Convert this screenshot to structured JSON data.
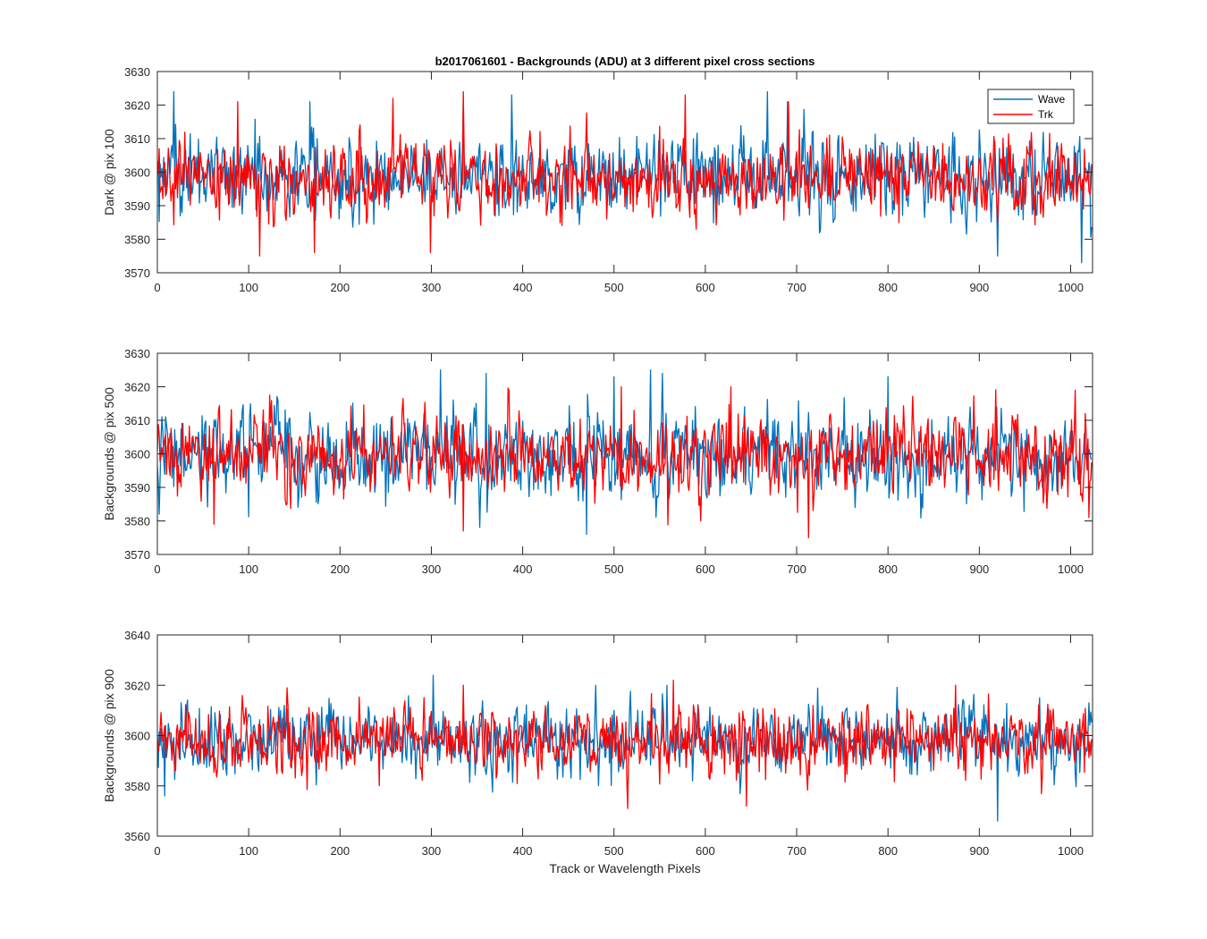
{
  "figure": {
    "title": "b2017061601 - Backgrounds (ADU) at 3 different pixel cross sections",
    "xlabel": "Track or Wavelength Pixels"
  },
  "legend": {
    "placement": "top-right of first panel",
    "entries": [
      {
        "label": "Wave",
        "color": "#0072BD"
      },
      {
        "label": "Trk",
        "color": "#FF0000"
      }
    ]
  },
  "chart_data": [
    {
      "type": "line",
      "ylabel": "Dark @ pix 100",
      "xlim": [
        0,
        1024
      ],
      "ylim": [
        3570,
        3630
      ],
      "xticks": [
        0,
        100,
        200,
        300,
        400,
        500,
        600,
        700,
        800,
        900,
        1000
      ],
      "yticks": [
        3570,
        3580,
        3590,
        3600,
        3610,
        3620,
        3630
      ],
      "grid": false,
      "n_points": 1024,
      "series": [
        {
          "name": "Wave",
          "color": "#0072BD",
          "mean": 3599,
          "std": 6.0,
          "spikes": [
            [
              18,
              3624
            ],
            [
              167,
              3621
            ],
            [
              335,
              3621
            ],
            [
              388,
              3623
            ],
            [
              668,
              3624
            ],
            [
              690,
              3621
            ],
            [
              1012,
              3573
            ],
            [
              920,
              3575
            ]
          ]
        },
        {
          "name": "Trk",
          "color": "#FF0000",
          "mean": 3598,
          "std": 5.5,
          "spikes": [
            [
              88,
              3621
            ],
            [
              112,
              3575
            ],
            [
              172,
              3576
            ],
            [
              258,
              3622
            ],
            [
              335,
              3624
            ],
            [
              578,
              3623
            ],
            [
              691,
              3621
            ],
            [
              299,
              3576
            ]
          ]
        }
      ]
    },
    {
      "type": "line",
      "ylabel": "Backgrounds @ pix 500",
      "xlim": [
        0,
        1024
      ],
      "ylim": [
        3570,
        3630
      ],
      "xticks": [
        0,
        100,
        200,
        300,
        400,
        500,
        600,
        700,
        800,
        900,
        1000
      ],
      "yticks": [
        3570,
        3580,
        3590,
        3600,
        3610,
        3620,
        3630
      ],
      "grid": false,
      "n_points": 1024,
      "series": [
        {
          "name": "Wave",
          "color": "#0072BD",
          "mean": 3599,
          "std": 6.5,
          "spikes": [
            [
              310,
              3625
            ],
            [
              360,
              3624
            ],
            [
              500,
              3623
            ],
            [
              540,
              3625
            ],
            [
              553,
              3624
            ],
            [
              470,
              3576
            ],
            [
              800,
              3623
            ],
            [
              2,
              3582
            ]
          ]
        },
        {
          "name": "Trk",
          "color": "#FF0000",
          "mean": 3600,
          "std": 6.0,
          "spikes": [
            [
              385,
              3619
            ],
            [
              508,
              3620
            ],
            [
              628,
              3620
            ],
            [
              1005,
              3619
            ],
            [
              335,
              3577
            ],
            [
              713,
              3575
            ],
            [
              62,
              3579
            ],
            [
              1020,
              3581
            ]
          ]
        }
      ]
    },
    {
      "type": "line",
      "ylabel": "Backgrounds @ pix 900",
      "xlim": [
        0,
        1024
      ],
      "ylim": [
        3560,
        3640
      ],
      "xticks": [
        0,
        100,
        200,
        300,
        400,
        500,
        600,
        700,
        800,
        900,
        1000
      ],
      "yticks": [
        3560,
        3580,
        3600,
        3620,
        3640
      ],
      "grid": false,
      "n_points": 1024,
      "series": [
        {
          "name": "Wave",
          "color": "#0072BD",
          "mean": 3598,
          "std": 7.0,
          "spikes": [
            [
              302,
              3624
            ],
            [
              480,
              3620
            ],
            [
              558,
              3620
            ],
            [
              920,
              3566
            ],
            [
              8,
              3576
            ],
            [
              1020,
              3613
            ]
          ]
        },
        {
          "name": "Trk",
          "color": "#FF0000",
          "mean": 3598,
          "std": 6.5,
          "spikes": [
            [
              335,
              3620
            ],
            [
              565,
              3622
            ],
            [
              874,
              3620
            ],
            [
              515,
              3571
            ],
            [
              645,
              3572
            ],
            [
              142,
              3619
            ]
          ]
        }
      ]
    }
  ]
}
